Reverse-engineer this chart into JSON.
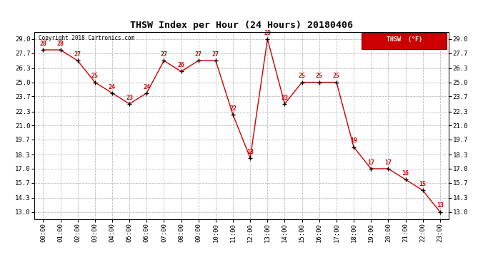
{
  "title": "THSW Index per Hour (24 Hours) 20180406",
  "copyright": "Copyright 2018 Cartronics.com",
  "legend_label": "THSW  (°F)",
  "hours": [
    0,
    1,
    2,
    3,
    4,
    5,
    6,
    7,
    8,
    9,
    10,
    11,
    12,
    13,
    14,
    15,
    16,
    17,
    18,
    19,
    20,
    21,
    22,
    23
  ],
  "values": [
    28,
    28,
    27,
    25,
    24,
    23,
    24,
    27,
    26,
    27,
    27,
    22,
    18,
    29,
    23,
    25,
    25,
    25,
    19,
    17,
    17,
    16,
    15,
    13
  ],
  "x_labels": [
    "00:00",
    "01:00",
    "02:00",
    "03:00",
    "04:00",
    "05:00",
    "06:00",
    "07:00",
    "08:00",
    "09:00",
    "10:00",
    "11:00",
    "12:00",
    "13:00",
    "14:00",
    "15:00",
    "16:00",
    "17:00",
    "18:00",
    "19:00",
    "20:00",
    "21:00",
    "22:00",
    "23:00"
  ],
  "y_ticks": [
    13.0,
    14.3,
    15.7,
    17.0,
    18.3,
    19.7,
    21.0,
    22.3,
    23.7,
    25.0,
    26.3,
    27.7,
    29.0
  ],
  "y_min": 12.35,
  "y_max": 29.65,
  "line_color": "#cc0000",
  "marker_color": "#000000",
  "data_label_color": "#cc0000",
  "background_color": "#ffffff",
  "plot_bg_color": "#ffffff",
  "grid_color": "#bbbbbb",
  "title_fontsize": 9.5,
  "label_fontsize": 6.5,
  "tick_fontsize": 6.5,
  "annot_fontsize": 6.0,
  "copyright_fontsize": 5.5,
  "legend_bg": "#cc0000",
  "legend_text_color": "#ffffff"
}
